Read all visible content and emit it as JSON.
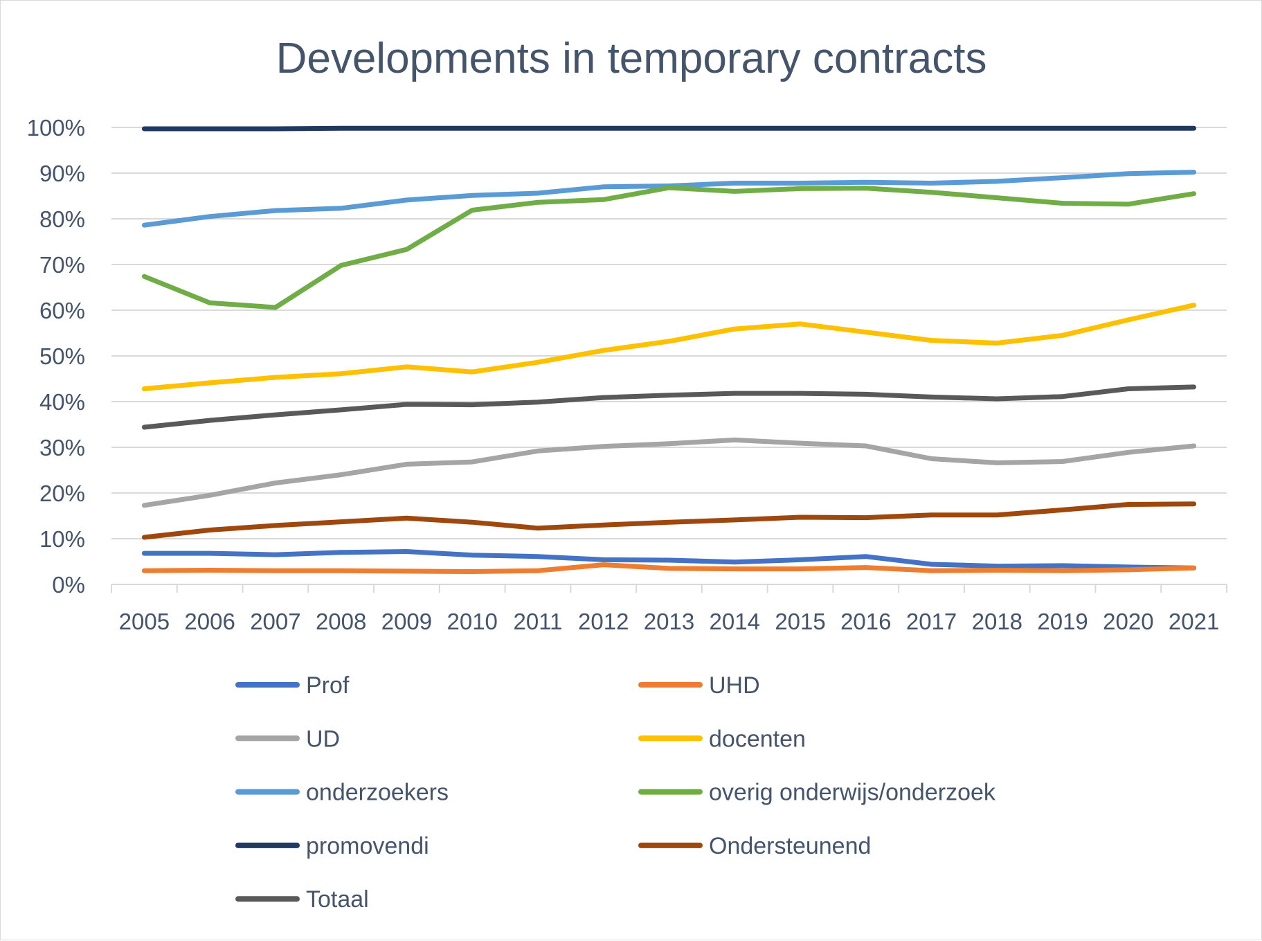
{
  "chart_data": {
    "type": "line",
    "title": "Developments in temporary contracts",
    "xlabel": "",
    "ylabel": "",
    "categories": [
      "2005",
      "2006",
      "2007",
      "2008",
      "2009",
      "2010",
      "2011",
      "2012",
      "2013",
      "2014",
      "2015",
      "2016",
      "2017",
      "2018",
      "2019",
      "2020",
      "2021"
    ],
    "ylim": [
      0,
      100
    ],
    "y_ticks": [
      {
        "value": 0,
        "label": "0%"
      },
      {
        "value": 10,
        "label": "10%"
      },
      {
        "value": 20,
        "label": "20%"
      },
      {
        "value": 30,
        "label": "30%"
      },
      {
        "value": 40,
        "label": "40%"
      },
      {
        "value": 50,
        "label": "50%"
      },
      {
        "value": 60,
        "label": "60%"
      },
      {
        "value": 70,
        "label": "70%"
      },
      {
        "value": 80,
        "label": "80%"
      },
      {
        "value": 90,
        "label": "90%"
      },
      {
        "value": 100,
        "label": "100%"
      }
    ],
    "grid": true,
    "legend_position": "bottom",
    "series": [
      {
        "name": "Prof",
        "color": "#4472c4",
        "values": [
          6.8,
          6.8,
          6.5,
          7.0,
          7.2,
          6.4,
          6.1,
          5.4,
          5.3,
          4.9,
          5.4,
          6.1,
          4.4,
          4.0,
          4.1,
          3.8,
          3.6
        ]
      },
      {
        "name": "UHD",
        "color": "#ed7d31",
        "values": [
          3.0,
          3.1,
          3.0,
          3.0,
          2.9,
          2.8,
          3.0,
          4.3,
          3.5,
          3.4,
          3.4,
          3.7,
          3.0,
          3.1,
          3.0,
          3.2,
          3.6
        ]
      },
      {
        "name": "UD",
        "color": "#a5a5a5",
        "values": [
          17.3,
          19.5,
          22.2,
          24.0,
          26.3,
          26.8,
          29.2,
          30.2,
          30.8,
          31.6,
          30.9,
          30.3,
          27.5,
          26.6,
          26.9,
          28.9,
          30.3
        ]
      },
      {
        "name": "docenten",
        "color": "#ffc000",
        "values": [
          42.8,
          44.1,
          45.3,
          46.1,
          47.6,
          46.5,
          48.6,
          51.2,
          53.2,
          55.9,
          57.0,
          55.2,
          53.4,
          52.8,
          54.5,
          57.9,
          61.1
        ]
      },
      {
        "name": "onderzoekers",
        "color": "#5b9bd5",
        "values": [
          78.6,
          80.5,
          81.8,
          82.3,
          84.1,
          85.1,
          85.6,
          87.0,
          87.2,
          87.8,
          87.8,
          88.0,
          87.8,
          88.2,
          89.0,
          89.9,
          90.2
        ]
      },
      {
        "name": "overig onderwijs/onderzoek",
        "color": "#70ad47",
        "values": [
          67.4,
          61.6,
          60.6,
          69.8,
          73.3,
          81.9,
          83.6,
          84.2,
          86.8,
          86.0,
          86.6,
          86.7,
          85.8,
          84.6,
          83.4,
          83.2,
          85.5
        ]
      },
      {
        "name": "promovendi",
        "color": "#1f3864",
        "values": [
          99.7,
          99.7,
          99.7,
          99.8,
          99.8,
          99.8,
          99.8,
          99.8,
          99.8,
          99.8,
          99.8,
          99.8,
          99.8,
          99.8,
          99.8,
          99.8,
          99.8
        ]
      },
      {
        "name": "Ondersteunend",
        "color": "#9e480e",
        "values": [
          10.3,
          11.9,
          12.9,
          13.7,
          14.5,
          13.6,
          12.3,
          13.0,
          13.6,
          14.1,
          14.7,
          14.6,
          15.2,
          15.2,
          16.3,
          17.5,
          17.6
        ]
      },
      {
        "name": "Totaal",
        "color": "#595959",
        "values": [
          34.4,
          35.9,
          37.1,
          38.2,
          39.4,
          39.3,
          39.9,
          40.9,
          41.4,
          41.8,
          41.8,
          41.6,
          41.0,
          40.6,
          41.1,
          42.8,
          43.2
        ]
      }
    ]
  }
}
